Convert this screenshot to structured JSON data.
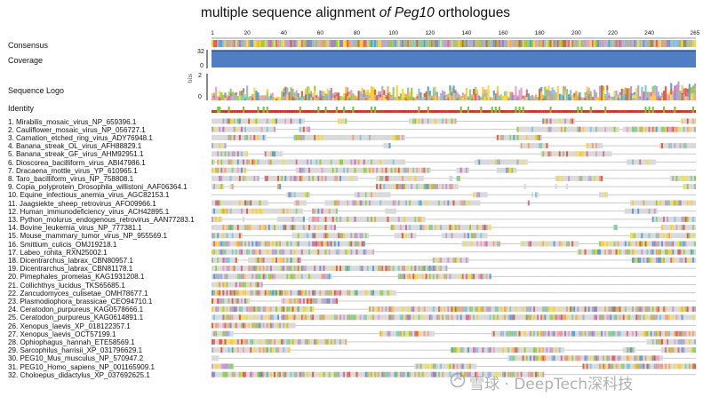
{
  "title_plain": "multiple sequence alignment ",
  "title_italic": "of Peg10",
  "title_tail": " orthologues",
  "tracks": {
    "consensus": "Consensus",
    "coverage": "Coverage",
    "logo": "Sequence Logo",
    "identity": "Identity",
    "coverage_max": "32",
    "coverage_min": "0",
    "logo_max": "2",
    "logo_min": "0",
    "logo_unit": "bits"
  },
  "ruler": [
    "1",
    "20",
    "40",
    "60",
    "80",
    "100",
    "120",
    "140",
    "160",
    "180",
    "200",
    "220",
    "240",
    "265"
  ],
  "sequences": [
    "1. Mirabilis_mosaic_virus_NP_659396.1",
    "2. Cauliflower_mosaic_virus_NP_056727.1",
    "3. Carnation_etched_ring_virus_ADY76948.1",
    "4. Banana_streak_OL_virus_AFH88829.1",
    "5. Banana_streak_GF_virus_AHM92951.1",
    "6. Dioscorea_bacilliform_virus_ABI47986.1",
    "7. Dracaena_mottle_virus_YP_610965.1",
    "8. Taro_bacilliform_virus_NP_758808.1",
    "9. Copia_polyprotein_Drosophila_willistoni_AAF06364.1",
    "10. Equine_infectious_anemia_virus_AGC82153.1",
    "11. Jaagsiekte_sheep_retrovirus_AFO09966.1",
    "12. Human_immunodeficiency_virus_ACH42895.1",
    "13. Python_molurus_endogenous_retrovirus_AAN77283.1",
    "14. Bovine_leukemia_virus_NP_777381.1",
    "15. Mouse_mammary_tumor_virus_NP_955569.1",
    "16. Smittium_culicis_OMJ19218.1",
    "17. Labeo_rohita_RXN25002.1",
    "18. Dicentrarchus_labrax_CBN80957.1",
    "19. Dicentrarchus_labrax_CBN81178.1",
    "20. Pimephales_promelas_KAG1931208.1",
    "21. Collichthys_lucidus_TKS65685.1",
    "22. Zancudomyces_culisetae_OMH78677.1",
    "23. Plasmodiophora_brassicae_CEO94710.1",
    "24. Ceratodon_purpureus_KAG0578666.1",
    "25. Ceratodon_purpureus_KAG0614891.1",
    "26. Xenopus_laevis_XP_018122357.1",
    "27. Xenopus_laevis_OCT57199.1",
    "28. Ophiophagus_hannah_ETE58569.1",
    "29. Sarcophilus_harrisii_XP_031796629.1",
    "30. PEG10_Mus_musculus_NP_570947.2",
    "31. PEG10_Homo_sapiens_NP_001165909.1",
    "32. Choloepus_didactylus_XP_037692625.1"
  ],
  "watermark": "雪球 · DeepTech深科技",
  "colors": {
    "coverage_fill": "#4f7fc2",
    "gap_grey": "#d9d9d9",
    "identity_red": "#c33a2d",
    "identity_green": "#7cc243",
    "residues": [
      "#e8a0c4",
      "#f0e040",
      "#8fd07a",
      "#7ec8e3",
      "#c39bd3",
      "#f4a460",
      "#e0603a",
      "#5aa0d8",
      "#b0b0b0",
      "#d070a0",
      "#9acd32",
      "#ffcc33"
    ]
  }
}
